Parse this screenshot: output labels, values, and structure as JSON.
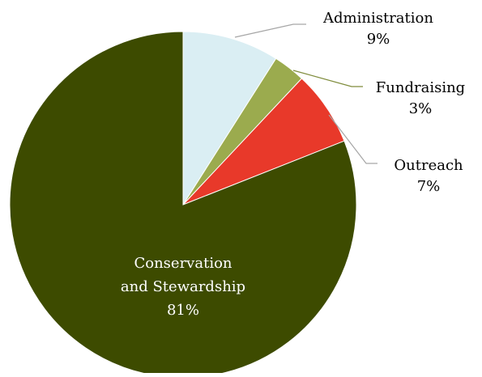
{
  "chart_data": {
    "type": "pie",
    "title": "",
    "slices": [
      {
        "label": "Administration",
        "value": 9,
        "value_label": "9%",
        "color": "#daeef3"
      },
      {
        "label": "Fundraising",
        "value": 3,
        "value_label": "3%",
        "color": "#9bab4e"
      },
      {
        "label": "Outreach",
        "value": 7,
        "value_label": "7%",
        "color": "#e8392a"
      },
      {
        "label": "Conservation and Stewardship",
        "value": 81,
        "value_label": "81%",
        "color": "#3d4b00"
      }
    ],
    "start_angle": "12 o'clock",
    "direction": "clockwise",
    "legend": "none",
    "labels": "outside with leader lines (inside for largest slice)"
  }
}
